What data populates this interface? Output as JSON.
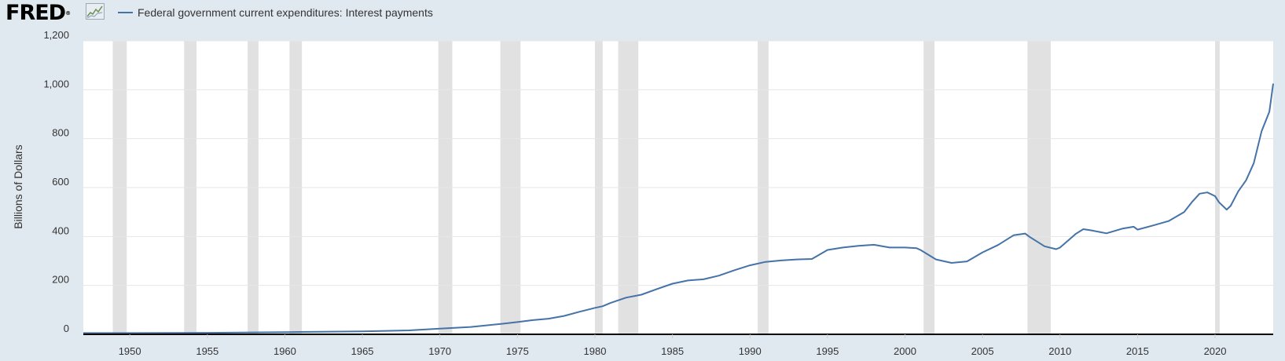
{
  "header": {
    "logo_text": "FRED",
    "logo_mark": "®",
    "logo_icon": "line-graph-icon"
  },
  "colors": {
    "page_bg": "#e1e9f0",
    "plot_bg": "#ffffff",
    "series": "#4572a7",
    "recession": "#e1e1e1",
    "grid": "#e6e6e6",
    "axis": "#000000"
  },
  "chart_data": {
    "type": "line",
    "title": "",
    "ylabel": "Billions of Dollars",
    "xlabel": "",
    "xlim": [
      1947.0,
      2023.75
    ],
    "ylim": [
      0,
      1200
    ],
    "grid": "horizontal",
    "legend": "top-left",
    "x_ticks": [
      "1950",
      "1955",
      "1960",
      "1965",
      "1970",
      "1975",
      "1980",
      "1985",
      "1990",
      "1995",
      "2000",
      "2005",
      "2010",
      "2015",
      "2020"
    ],
    "y_ticks": [
      "0",
      "200",
      "400",
      "600",
      "800",
      "1,000",
      "1,200"
    ],
    "recessions": [
      [
        1948.9,
        1949.8
      ],
      [
        1953.5,
        1954.3
      ],
      [
        1957.6,
        1958.3
      ],
      [
        1960.3,
        1961.1
      ],
      [
        1969.9,
        1970.8
      ],
      [
        1973.9,
        1975.2
      ],
      [
        1980.0,
        1980.5
      ],
      [
        1981.5,
        1982.8
      ],
      [
        1990.5,
        1991.2
      ],
      [
        2001.2,
        2001.9
      ],
      [
        2007.9,
        2009.4
      ],
      [
        2020.0,
        2020.3
      ]
    ],
    "series": [
      {
        "name": "Federal government current expenditures: Interest payments",
        "x": [
          1947,
          1950,
          1955,
          1960,
          1965,
          1968,
          1970,
          1972,
          1974,
          1975,
          1976,
          1977,
          1978,
          1979,
          1980,
          1980.5,
          1981,
          1982,
          1983,
          1984,
          1985,
          1986,
          1987,
          1988,
          1989,
          1990,
          1991,
          1992,
          1993,
          1994,
          1995,
          1996,
          1997,
          1998,
          1999,
          2000,
          2000.75,
          2001,
          2002,
          2003,
          2004,
          2005,
          2006,
          2007,
          2007.75,
          2008,
          2009,
          2009.75,
          2010,
          2011,
          2011.5,
          2012,
          2013,
          2014,
          2014.75,
          2015,
          2016,
          2017,
          2018,
          2018.5,
          2019,
          2019.5,
          2020,
          2020.25,
          2020.75,
          2021,
          2021.5,
          2022,
          2022.5,
          2023,
          2023.5,
          2023.75
        ],
        "values": [
          5,
          5,
          6,
          9,
          12,
          16,
          23,
          30,
          43,
          50,
          58,
          64,
          75,
          92,
          108,
          115,
          128,
          150,
          162,
          185,
          207,
          220,
          225,
          240,
          262,
          282,
          296,
          302,
          306,
          308,
          345,
          355,
          362,
          366,
          355,
          355,
          352,
          345,
          306,
          292,
          298,
          335,
          365,
          405,
          412,
          400,
          360,
          348,
          355,
          410,
          430,
          425,
          413,
          432,
          440,
          428,
          445,
          463,
          500,
          540,
          575,
          580,
          565,
          540,
          510,
          525,
          585,
          630,
          700,
          830,
          910,
          1025
        ]
      }
    ]
  }
}
